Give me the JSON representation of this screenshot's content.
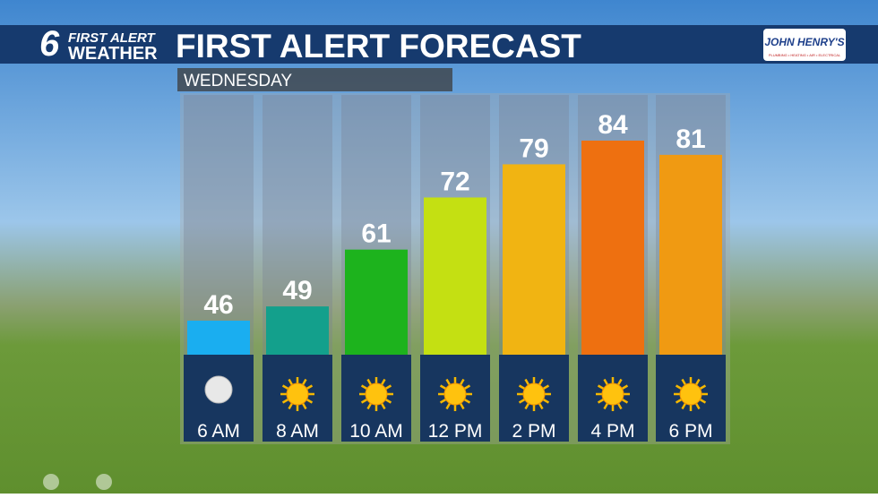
{
  "branding": {
    "channel": "6",
    "line1": "FIRST ALERT",
    "line2": "WEATHER",
    "sponsor": "JOHN HENRY'S",
    "sponsor_tagline": "PLUMBING • HEATING • AIR • ELECTRICAL"
  },
  "chart_data": {
    "type": "bar",
    "title": "FIRST ALERT FORECAST",
    "subtitle": "WEDNESDAY",
    "categories": [
      "6 AM",
      "8 AM",
      "10 AM",
      "12 PM",
      "2 PM",
      "4 PM",
      "6 PM"
    ],
    "values": [
      46,
      49,
      61,
      72,
      79,
      84,
      81
    ],
    "colors": [
      "#1aaef0",
      "#13a08c",
      "#1db31d",
      "#c4e012",
      "#f1b412",
      "#ee7010",
      "#f09a12"
    ]
  }
}
